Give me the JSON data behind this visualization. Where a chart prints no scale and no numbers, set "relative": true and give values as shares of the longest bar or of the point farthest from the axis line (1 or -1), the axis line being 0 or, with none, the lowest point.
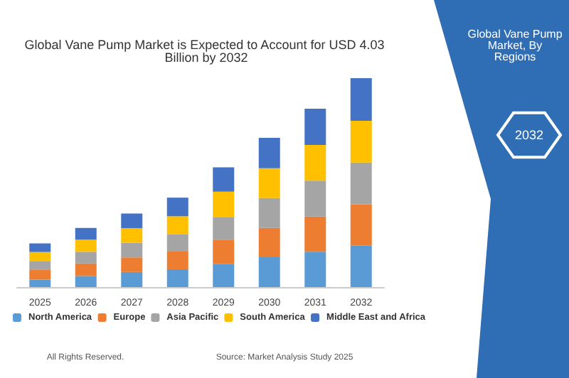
{
  "chart_data": {
    "type": "bar",
    "title": "Global Vane Pump Market is Expected to Account for USD 4.03 Billion by 2032",
    "categories": [
      "2025",
      "2026",
      "2027",
      "2028",
      "2029",
      "2030",
      "2031",
      "2032"
    ],
    "stacked": true,
    "relative": true,
    "legend": "bottom",
    "series": [
      {
        "name": "North America",
        "color": "#5b9bd5",
        "values": [
          0.036,
          0.053,
          0.072,
          0.085,
          0.111,
          0.143,
          0.169,
          0.198
        ]
      },
      {
        "name": "Europe",
        "color": "#ed7d31",
        "values": [
          0.046,
          0.06,
          0.07,
          0.085,
          0.116,
          0.14,
          0.169,
          0.198
        ]
      },
      {
        "name": "Asia Pacific",
        "color": "#a5a5a5",
        "values": [
          0.043,
          0.056,
          0.07,
          0.082,
          0.109,
          0.143,
          0.171,
          0.2
        ]
      },
      {
        "name": "South America",
        "color": "#ffc000",
        "values": [
          0.043,
          0.058,
          0.07,
          0.087,
          0.121,
          0.143,
          0.171,
          0.2
        ]
      },
      {
        "name": "Middle East and Africa",
        "color": "#4472c4",
        "values": [
          0.041,
          0.056,
          0.07,
          0.089,
          0.116,
          0.145,
          0.174,
          0.204
        ]
      }
    ],
    "annotations": [
      "Global Vane Pump Market, By Regions",
      "2032",
      "All Rights Reserved.",
      "Source: Market Analysis Study 2025"
    ]
  }
}
